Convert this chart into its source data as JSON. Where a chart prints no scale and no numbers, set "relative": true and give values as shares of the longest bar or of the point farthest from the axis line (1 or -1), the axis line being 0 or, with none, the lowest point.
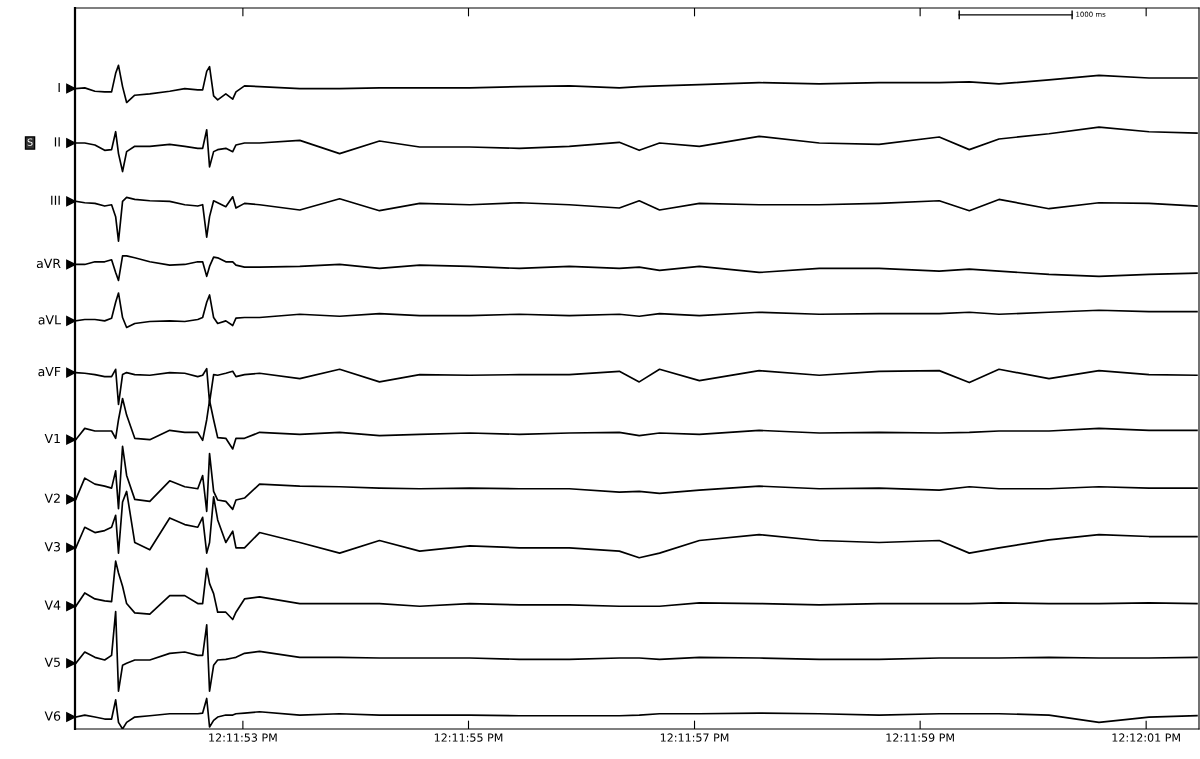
{
  "chart_data": {
    "type": "line",
    "legend": "left",
    "relative": true,
    "tick_labels": "x",
    "line_style": "solid",
    "xlim": [
      12.197643,
      12.200408
    ],
    "xticks": [
      {
        "value": 12.198056,
        "label": "12:11:53 PM"
      },
      {
        "value": 12.198611,
        "label": "12:11:55 PM"
      },
      {
        "value": 12.199167,
        "label": "12:11:57 PM"
      },
      {
        "value": 12.199722,
        "label": "12:11:59 PM"
      },
      {
        "value": 12.200278,
        "label": "12:12:01 PM"
      }
    ],
    "annotations": [
      "1000 ms",
      "S"
    ],
    "x": [
      12.197645,
      12.197667,
      12.197692,
      12.197716,
      12.197733,
      12.197743,
      12.19775,
      12.19776,
      12.19777,
      12.19779,
      12.197827,
      12.197876,
      12.197913,
      12.197945,
      12.197957,
      12.197967,
      12.197974,
      12.197984,
      12.197994,
      12.198014,
      12.198031,
      12.198039,
      12.19806,
      12.198097,
      12.198196,
      12.198294,
      12.198392,
      12.198491,
      12.198614,
      12.198736,
      12.198859,
      12.198982,
      12.199031,
      12.199081,
      12.199179,
      12.199326,
      12.199474,
      12.199621,
      12.199769,
      12.199843,
      12.199916,
      12.200039,
      12.200162,
      12.200285,
      12.200403
    ],
    "series": [
      {
        "name": "I",
        "color": "#000000",
        "values": [
          0.965,
          0.966,
          0.961,
          0.96,
          0.96,
          0.988,
          1.0,
          0.968,
          0.944,
          0.955,
          0.957,
          0.961,
          0.965,
          0.963,
          0.963,
          0.991,
          0.998,
          0.954,
          0.948,
          0.957,
          0.949,
          0.96,
          0.969,
          0.968,
          0.965,
          0.965,
          0.966,
          0.966,
          0.966,
          0.968,
          0.969,
          0.966,
          0.968,
          0.969,
          0.971,
          0.974,
          0.972,
          0.974,
          0.974,
          0.975,
          0.972,
          0.978,
          0.985,
          0.981,
          0.981
        ]
      },
      {
        "name": "II",
        "color": "#000000",
        "values": [
          0.883,
          0.883,
          0.88,
          0.872,
          0.873,
          0.9,
          0.867,
          0.84,
          0.87,
          0.878,
          0.878,
          0.881,
          0.878,
          0.875,
          0.875,
          0.903,
          0.847,
          0.87,
          0.873,
          0.875,
          0.87,
          0.88,
          0.883,
          0.883,
          0.887,
          0.867,
          0.886,
          0.877,
          0.877,
          0.875,
          0.878,
          0.884,
          0.872,
          0.883,
          0.878,
          0.893,
          0.883,
          0.881,
          0.892,
          0.873,
          0.889,
          0.897,
          0.907,
          0.9,
          0.898
        ]
      },
      {
        "name": "III",
        "color": "#000000",
        "values": [
          0.795,
          0.793,
          0.792,
          0.788,
          0.79,
          0.772,
          0.735,
          0.795,
          0.801,
          0.798,
          0.796,
          0.795,
          0.79,
          0.788,
          0.79,
          0.741,
          0.772,
          0.796,
          0.793,
          0.787,
          0.802,
          0.785,
          0.792,
          0.79,
          0.782,
          0.799,
          0.781,
          0.792,
          0.79,
          0.793,
          0.79,
          0.785,
          0.796,
          0.782,
          0.792,
          0.79,
          0.79,
          0.792,
          0.796,
          0.781,
          0.798,
          0.784,
          0.793,
          0.792,
          0.788
        ]
      },
      {
        "name": "aVR",
        "color": "#000000",
        "values": [
          0.7,
          0.7,
          0.704,
          0.704,
          0.707,
          0.688,
          0.676,
          0.713,
          0.713,
          0.71,
          0.704,
          0.699,
          0.7,
          0.704,
          0.704,
          0.682,
          0.697,
          0.711,
          0.71,
          0.704,
          0.704,
          0.699,
          0.696,
          0.696,
          0.697,
          0.7,
          0.694,
          0.699,
          0.697,
          0.694,
          0.697,
          0.694,
          0.696,
          0.691,
          0.697,
          0.688,
          0.694,
          0.694,
          0.69,
          0.693,
          0.69,
          0.685,
          0.682,
          0.685,
          0.687
        ]
      },
      {
        "name": "aVL",
        "color": "#000000",
        "values": [
          0.615,
          0.617,
          0.617,
          0.615,
          0.619,
          0.643,
          0.657,
          0.62,
          0.605,
          0.611,
          0.614,
          0.615,
          0.614,
          0.617,
          0.62,
          0.643,
          0.654,
          0.62,
          0.611,
          0.615,
          0.608,
          0.619,
          0.62,
          0.62,
          0.625,
          0.622,
          0.626,
          0.623,
          0.623,
          0.625,
          0.623,
          0.625,
          0.622,
          0.626,
          0.623,
          0.628,
          0.625,
          0.626,
          0.626,
          0.628,
          0.625,
          0.628,
          0.631,
          0.629,
          0.629
        ]
      },
      {
        "name": "aVF",
        "color": "#000000",
        "values": [
          0.537,
          0.536,
          0.534,
          0.531,
          0.531,
          0.542,
          0.489,
          0.534,
          0.537,
          0.534,
          0.533,
          0.537,
          0.536,
          0.531,
          0.533,
          0.543,
          0.492,
          0.534,
          0.533,
          0.536,
          0.539,
          0.531,
          0.534,
          0.536,
          0.528,
          0.542,
          0.523,
          0.534,
          0.533,
          0.534,
          0.534,
          0.539,
          0.523,
          0.542,
          0.525,
          0.54,
          0.533,
          0.539,
          0.54,
          0.522,
          0.542,
          0.528,
          0.54,
          0.534,
          0.533
        ]
      },
      {
        "name": "V1",
        "color": "#000000",
        "values": [
          0.436,
          0.453,
          0.449,
          0.449,
          0.449,
          0.438,
          0.466,
          0.498,
          0.473,
          0.438,
          0.436,
          0.45,
          0.447,
          0.447,
          0.435,
          0.466,
          0.495,
          0.466,
          0.439,
          0.438,
          0.422,
          0.438,
          0.438,
          0.447,
          0.444,
          0.447,
          0.442,
          0.444,
          0.446,
          0.444,
          0.446,
          0.447,
          0.442,
          0.446,
          0.444,
          0.45,
          0.446,
          0.447,
          0.446,
          0.447,
          0.449,
          0.449,
          0.453,
          0.45,
          0.45
        ]
      },
      {
        "name": "V2",
        "color": "#000000",
        "values": [
          0.346,
          0.378,
          0.369,
          0.366,
          0.363,
          0.389,
          0.332,
          0.426,
          0.382,
          0.346,
          0.343,
          0.374,
          0.365,
          0.362,
          0.382,
          0.328,
          0.415,
          0.358,
          0.345,
          0.343,
          0.331,
          0.345,
          0.348,
          0.369,
          0.366,
          0.365,
          0.363,
          0.362,
          0.363,
          0.362,
          0.362,
          0.357,
          0.358,
          0.355,
          0.36,
          0.366,
          0.362,
          0.363,
          0.36,
          0.365,
          0.362,
          0.362,
          0.365,
          0.363,
          0.363
        ]
      },
      {
        "name": "V3",
        "color": "#000000",
        "values": [
          0.273,
          0.304,
          0.296,
          0.299,
          0.304,
          0.322,
          0.265,
          0.342,
          0.358,
          0.281,
          0.27,
          0.318,
          0.308,
          0.304,
          0.319,
          0.265,
          0.281,
          0.35,
          0.315,
          0.281,
          0.298,
          0.273,
          0.273,
          0.296,
          0.281,
          0.265,
          0.284,
          0.268,
          0.276,
          0.273,
          0.273,
          0.268,
          0.258,
          0.265,
          0.284,
          0.293,
          0.284,
          0.281,
          0.284,
          0.265,
          0.273,
          0.285,
          0.293,
          0.29,
          0.29
        ]
      },
      {
        "name": "V4",
        "color": "#000000",
        "values": [
          0.185,
          0.205,
          0.196,
          0.193,
          0.192,
          0.253,
          0.235,
          0.215,
          0.189,
          0.175,
          0.173,
          0.201,
          0.201,
          0.189,
          0.189,
          0.242,
          0.219,
          0.204,
          0.176,
          0.176,
          0.165,
          0.176,
          0.196,
          0.199,
          0.189,
          0.189,
          0.189,
          0.185,
          0.189,
          0.187,
          0.187,
          0.185,
          0.185,
          0.185,
          0.19,
          0.189,
          0.187,
          0.189,
          0.189,
          0.189,
          0.19,
          0.189,
          0.189,
          0.19,
          0.189
        ]
      },
      {
        "name": "V5",
        "color": "#000000",
        "values": [
          0.099,
          0.116,
          0.108,
          0.104,
          0.111,
          0.177,
          0.057,
          0.096,
          0.099,
          0.104,
          0.104,
          0.114,
          0.116,
          0.111,
          0.111,
          0.157,
          0.057,
          0.096,
          0.104,
          0.105,
          0.107,
          0.108,
          0.114,
          0.117,
          0.108,
          0.108,
          0.107,
          0.107,
          0.107,
          0.105,
          0.105,
          0.107,
          0.107,
          0.105,
          0.108,
          0.107,
          0.105,
          0.105,
          0.107,
          0.107,
          0.107,
          0.108,
          0.107,
          0.107,
          0.108
        ]
      },
      {
        "name": "V6",
        "color": "#000000",
        "values": [
          0.018,
          0.021,
          0.018,
          0.015,
          0.015,
          0.044,
          0.01,
          0.0,
          0.01,
          0.018,
          0.02,
          0.023,
          0.023,
          0.023,
          0.024,
          0.046,
          0.003,
          0.013,
          0.018,
          0.021,
          0.021,
          0.023,
          0.024,
          0.026,
          0.021,
          0.023,
          0.021,
          0.021,
          0.021,
          0.02,
          0.02,
          0.02,
          0.021,
          0.023,
          0.023,
          0.024,
          0.023,
          0.021,
          0.023,
          0.023,
          0.023,
          0.021,
          0.01,
          0.018,
          0.02
        ]
      }
    ]
  }
}
